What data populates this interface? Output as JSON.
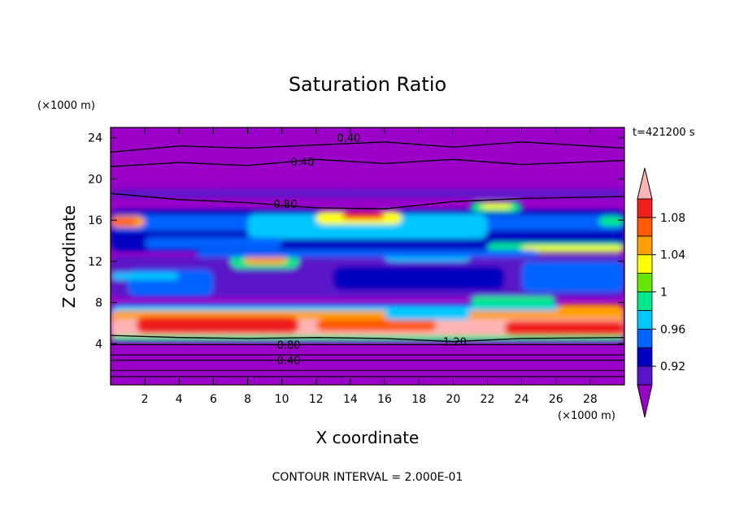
{
  "chart_data": {
    "type": "heatmap",
    "title": "Saturation Ratio",
    "xlabel": "X coordinate",
    "ylabel": "Z coordinate",
    "x_unit": "(×1000 m)",
    "y_unit": "(×1000 m)",
    "time_label": "t=421200 s",
    "footer": "CONTOUR INTERVAL = 2.000E-01",
    "xlim": [
      0,
      30
    ],
    "ylim": [
      0,
      25
    ],
    "x_ticks": [
      2,
      4,
      6,
      8,
      10,
      12,
      14,
      16,
      18,
      20,
      22,
      24,
      26,
      28
    ],
    "y_ticks": [
      4,
      8,
      12,
      16,
      20,
      24
    ],
    "colorbar": {
      "levels": [
        0.9,
        0.92,
        0.94,
        0.96,
        0.98,
        1.0,
        1.02,
        1.04,
        1.06,
        1.08,
        1.1
      ],
      "labeled_levels": [
        "0.92",
        "0.96",
        "1",
        "1.04",
        "1.08"
      ],
      "colors": [
        "#9a00c8",
        "#5a14c8",
        "#0000c0",
        "#0064ff",
        "#00c8ff",
        "#00e68c",
        "#64e600",
        "#ffff00",
        "#ffa000",
        "#ff5a00",
        "#f01e1e",
        "#ffb4b4"
      ]
    },
    "contour_labels": [
      {
        "text": "0.40",
        "x": 13.9,
        "y": 24.0
      },
      {
        "text": "0.40",
        "x": 11.2,
        "y": 21.7
      },
      {
        "text": "0.80",
        "x": 10.2,
        "y": 17.6
      },
      {
        "text": "1.20",
        "x": 20.1,
        "y": 4.2
      },
      {
        "text": "0.80",
        "x": 10.4,
        "y": 3.9
      },
      {
        "text": "0.40",
        "x": 10.4,
        "y": 2.4
      }
    ],
    "contours": [
      {
        "level": 0.4,
        "points": [
          [
            0,
            22.6
          ],
          [
            4,
            23.2
          ],
          [
            8,
            23.0
          ],
          [
            12,
            23.3
          ],
          [
            16,
            23.6
          ],
          [
            20,
            23.1
          ],
          [
            24,
            23.6
          ],
          [
            30,
            23.0
          ]
        ]
      },
      {
        "level": 0.4,
        "points": [
          [
            0,
            21.2
          ],
          [
            4,
            21.6
          ],
          [
            8,
            21.3
          ],
          [
            12,
            21.9
          ],
          [
            16,
            21.5
          ],
          [
            20,
            21.9
          ],
          [
            24,
            21.4
          ],
          [
            30,
            21.8
          ]
        ]
      },
      {
        "level": 0.8,
        "points": [
          [
            0,
            18.6
          ],
          [
            4,
            18.0
          ],
          [
            8,
            17.7
          ],
          [
            12,
            17.2
          ],
          [
            16,
            17.1
          ],
          [
            20,
            17.8
          ],
          [
            24,
            18.1
          ],
          [
            30,
            18.3
          ]
        ]
      },
      {
        "level": 1.2,
        "points": [
          [
            0,
            4.8
          ],
          [
            4,
            4.6
          ],
          [
            8,
            4.5
          ],
          [
            12,
            4.6
          ],
          [
            16,
            4.5
          ],
          [
            20,
            4.2
          ],
          [
            24,
            4.5
          ],
          [
            30,
            4.6
          ]
        ]
      },
      {
        "level": 0.8,
        "points": [
          [
            0,
            3.9
          ],
          [
            30,
            3.9
          ]
        ]
      },
      {
        "level": 0.4,
        "points": [
          [
            0,
            2.4
          ],
          [
            30,
            2.4
          ]
        ]
      }
    ]
  }
}
